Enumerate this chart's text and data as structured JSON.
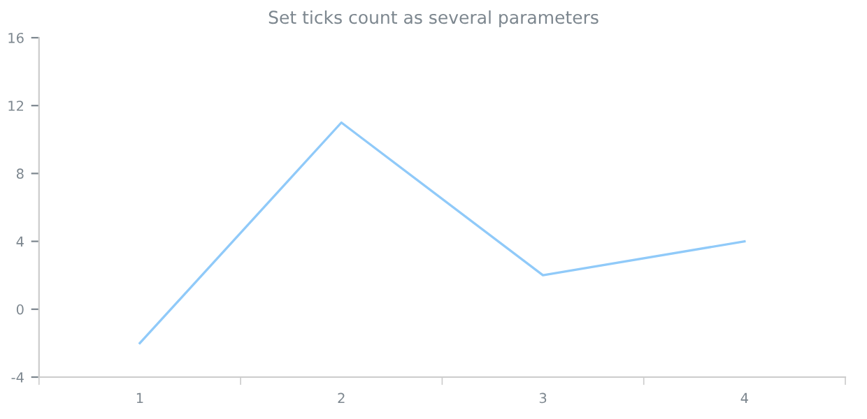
{
  "chart_data": {
    "type": "line",
    "title": "Set ticks count as several parameters",
    "categories": [
      "1",
      "2",
      "3",
      "4"
    ],
    "series": [
      {
        "color": "#90caf9",
        "values": [
          -2,
          11,
          2,
          4
        ]
      }
    ],
    "ylim": [
      -4,
      16
    ],
    "yticks": [
      -4,
      0,
      4,
      8,
      12,
      16
    ],
    "grid": false,
    "marker": "none",
    "line_style": "solid"
  }
}
